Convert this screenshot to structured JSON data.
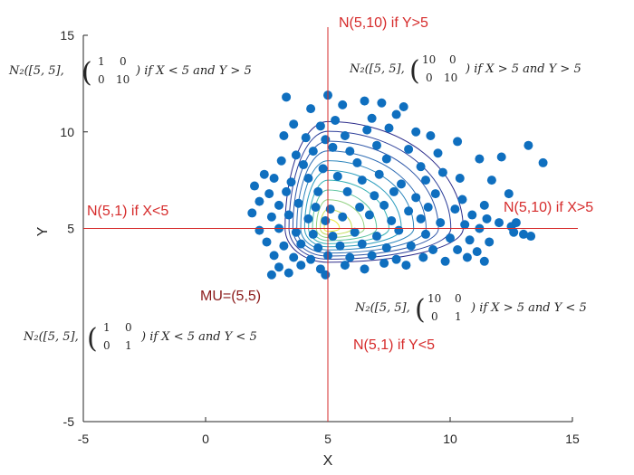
{
  "chart_data": {
    "type": "scatter",
    "title": "",
    "xlabel": "X",
    "ylabel": "Y",
    "xlim": [
      -5,
      15
    ],
    "ylim": [
      -5,
      15
    ],
    "xticks": [
      "-5",
      "0",
      "5",
      "10",
      "15"
    ],
    "yticks": [
      "-5",
      "5",
      "10",
      "15"
    ],
    "center": {
      "x": 5,
      "y": 5
    },
    "reference_lines": {
      "vertical_x": 5,
      "horizontal_y": 5
    },
    "contours": {
      "description": "piecewise bivariate normal density contours centred at (5,5)",
      "levels": 11,
      "quadrant_sd": {
        "x_less_5_y_greater_5": {
          "sx": 1,
          "sy": 3.162
        },
        "x_greater_5_y_greater_5": {
          "sx": 3.162,
          "sy": 3.162
        },
        "x_greater_5_y_less_5": {
          "sx": 3.162,
          "sy": 1
        },
        "x_less_5_y_less_5": {
          "sx": 1,
          "sy": 1
        }
      }
    },
    "points": [
      [
        3.3,
        11.8
      ],
      [
        4.3,
        11.2
      ],
      [
        5.0,
        11.9
      ],
      [
        5.6,
        11.4
      ],
      [
        6.5,
        11.6
      ],
      [
        7.2,
        11.5
      ],
      [
        8.1,
        11.3
      ],
      [
        7.8,
        10.9
      ],
      [
        6.8,
        10.7
      ],
      [
        5.3,
        10.6
      ],
      [
        4.7,
        10.3
      ],
      [
        3.6,
        10.4
      ],
      [
        3.2,
        9.8
      ],
      [
        4.1,
        9.7
      ],
      [
        4.9,
        9.6
      ],
      [
        5.7,
        9.8
      ],
      [
        6.6,
        10.1
      ],
      [
        7.5,
        10.2
      ],
      [
        8.6,
        10.0
      ],
      [
        9.2,
        9.8
      ],
      [
        10.3,
        9.5
      ],
      [
        13.2,
        9.3
      ],
      [
        13.8,
        8.4
      ],
      [
        12.1,
        8.7
      ],
      [
        11.2,
        8.6
      ],
      [
        9.5,
        8.9
      ],
      [
        8.3,
        9.1
      ],
      [
        7.0,
        9.3
      ],
      [
        5.9,
        9.0
      ],
      [
        5.2,
        9.2
      ],
      [
        4.4,
        9.0
      ],
      [
        3.7,
        8.8
      ],
      [
        3.1,
        8.5
      ],
      [
        4.0,
        8.3
      ],
      [
        4.8,
        8.1
      ],
      [
        6.2,
        8.4
      ],
      [
        7.4,
        8.6
      ],
      [
        8.8,
        8.2
      ],
      [
        9.7,
        7.9
      ],
      [
        10.4,
        7.6
      ],
      [
        11.7,
        7.5
      ],
      [
        12.4,
        6.8
      ],
      [
        2.4,
        7.8
      ],
      [
        2.8,
        7.6
      ],
      [
        3.5,
        7.4
      ],
      [
        4.2,
        7.6
      ],
      [
        5.4,
        7.7
      ],
      [
        6.4,
        7.5
      ],
      [
        7.1,
        7.8
      ],
      [
        8.0,
        7.3
      ],
      [
        9.0,
        7.5
      ],
      [
        2.0,
        7.2
      ],
      [
        2.6,
        6.8
      ],
      [
        3.3,
        6.9
      ],
      [
        4.6,
        6.9
      ],
      [
        5.8,
        6.9
      ],
      [
        6.9,
        6.7
      ],
      [
        7.7,
        6.9
      ],
      [
        8.6,
        6.6
      ],
      [
        9.4,
        6.8
      ],
      [
        10.5,
        6.5
      ],
      [
        11.4,
        6.2
      ],
      [
        2.2,
        6.4
      ],
      [
        3.0,
        6.2
      ],
      [
        3.8,
        6.3
      ],
      [
        4.5,
        6.1
      ],
      [
        5.1,
        6.0
      ],
      [
        6.3,
        6.1
      ],
      [
        7.3,
        6.2
      ],
      [
        8.3,
        5.9
      ],
      [
        9.1,
        6.1
      ],
      [
        10.2,
        6.0
      ],
      [
        10.9,
        5.7
      ],
      [
        11.5,
        5.5
      ],
      [
        12.0,
        5.3
      ],
      [
        12.5,
        5.1
      ],
      [
        12.7,
        5.3
      ],
      [
        13.0,
        4.7
      ],
      [
        1.9,
        5.8
      ],
      [
        2.7,
        5.6
      ],
      [
        3.4,
        5.7
      ],
      [
        4.2,
        5.5
      ],
      [
        4.9,
        5.4
      ],
      [
        5.6,
        5.6
      ],
      [
        6.7,
        5.7
      ],
      [
        7.6,
        5.4
      ],
      [
        8.8,
        5.5
      ],
      [
        9.6,
        5.3
      ],
      [
        10.6,
        5.2
      ],
      [
        11.2,
        5.0
      ],
      [
        12.6,
        4.8
      ],
      [
        13.3,
        4.6
      ],
      [
        2.2,
        4.9
      ],
      [
        3.0,
        5.0
      ],
      [
        3.7,
        4.8
      ],
      [
        4.4,
        4.7
      ],
      [
        5.2,
        4.6
      ],
      [
        6.1,
        4.8
      ],
      [
        7.0,
        4.6
      ],
      [
        7.9,
        4.9
      ],
      [
        9.0,
        4.7
      ],
      [
        10.0,
        4.5
      ],
      [
        10.8,
        4.4
      ],
      [
        11.6,
        4.3
      ],
      [
        2.5,
        4.3
      ],
      [
        3.2,
        4.1
      ],
      [
        3.9,
        4.2
      ],
      [
        4.6,
        4.0
      ],
      [
        5.5,
        4.1
      ],
      [
        6.4,
        4.2
      ],
      [
        7.4,
        4.0
      ],
      [
        8.4,
        4.1
      ],
      [
        9.3,
        3.9
      ],
      [
        10.3,
        3.9
      ],
      [
        11.1,
        3.8
      ],
      [
        2.8,
        3.6
      ],
      [
        3.6,
        3.5
      ],
      [
        4.3,
        3.4
      ],
      [
        5.0,
        3.6
      ],
      [
        5.9,
        3.5
      ],
      [
        6.8,
        3.6
      ],
      [
        7.8,
        3.4
      ],
      [
        8.9,
        3.5
      ],
      [
        9.8,
        3.3
      ],
      [
        10.7,
        3.5
      ],
      [
        11.4,
        3.3
      ],
      [
        3.0,
        3.0
      ],
      [
        3.9,
        3.1
      ],
      [
        4.7,
        2.9
      ],
      [
        5.7,
        3.1
      ],
      [
        6.5,
        2.9
      ],
      [
        7.3,
        3.2
      ],
      [
        8.2,
        3.1
      ],
      [
        2.7,
        2.6
      ],
      [
        3.4,
        2.7
      ],
      [
        4.9,
        2.6
      ]
    ]
  },
  "annotations": {
    "top": "N(5,10) if Y>5",
    "left": "N(5,1) if X<5",
    "right": "N(5,10) if X>5",
    "bottom": "N(5,1) if Y<5",
    "mu": "MU=(5,5)"
  },
  "formulas": {
    "top_left": {
      "prefix": "N₂([5, 5],",
      "m11": "1",
      "m12": "0",
      "m21": "0",
      "m22": "10",
      "suffix": ") if X < 5 and Y > 5"
    },
    "top_right": {
      "prefix": "N₂([5, 5],",
      "m11": "10",
      "m12": "0",
      "m21": "0",
      "m22": "10",
      "suffix": ") if X > 5 and Y > 5"
    },
    "bottom_right": {
      "prefix": "N₂([5, 5],",
      "m11": "10",
      "m12": "0",
      "m21": "0",
      "m22": "1",
      "suffix": ") if X > 5 and Y < 5"
    },
    "bottom_left": {
      "prefix": "N₂([5, 5],",
      "m11": "1",
      "m12": "0",
      "m21": "0",
      "m22": "1",
      "suffix": ") if X < 5 and Y < 5"
    }
  },
  "colors": {
    "points": "#0f6fbf",
    "reference_lines": "#d62b2b",
    "contour_outer": "#2b2b8a",
    "contour_inner": "#e8e838",
    "axes": "#262626"
  }
}
